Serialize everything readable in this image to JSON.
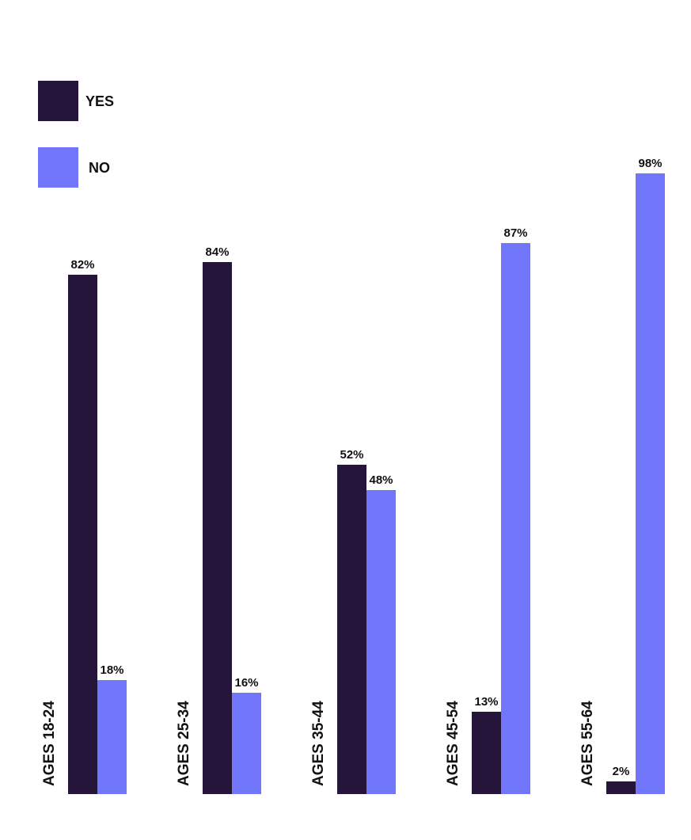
{
  "chart_data": {
    "type": "bar",
    "categories": [
      "AGES 18-24",
      "AGES 25-34",
      "AGES 35-44",
      "AGES 45-54",
      "AGES 55-64"
    ],
    "series": [
      {
        "name": "YES",
        "color": "#25153a",
        "values": [
          82,
          84,
          52,
          13,
          2
        ],
        "value_labels": [
          "82%",
          "84%",
          "52%",
          "13%",
          "2%"
        ]
      },
      {
        "name": "NO",
        "color": "#7276fa",
        "values": [
          18,
          16,
          48,
          87,
          98
        ],
        "value_labels": [
          "18%",
          "16%",
          "48%",
          "87%",
          "98%"
        ]
      }
    ],
    "ylim": [
      0,
      100
    ]
  }
}
